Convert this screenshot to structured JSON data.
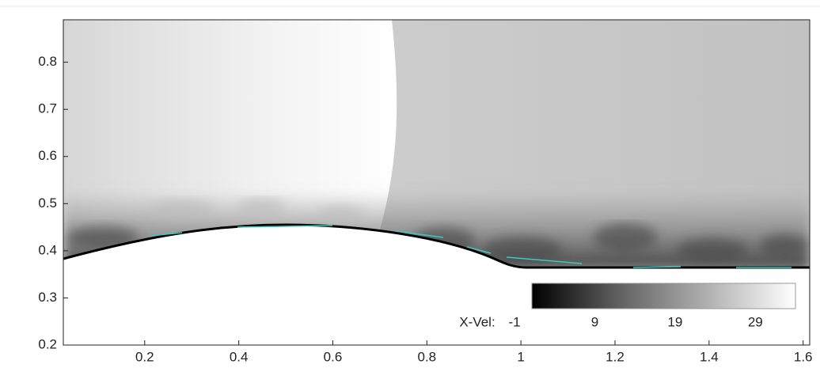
{
  "chart_data": {
    "type": "contour",
    "xlim": [
      0.027,
      1.614
    ],
    "ylim": [
      0.2,
      0.89
    ],
    "xticks": [
      0.2,
      0.4,
      0.6,
      0.8,
      1,
      1.2,
      1.4,
      1.6
    ],
    "yticks": [
      0.2,
      0.3,
      0.4,
      0.5,
      0.6,
      0.7,
      0.8
    ],
    "colorbar": {
      "label": "X-Vel:",
      "ticks": [
        -1,
        9,
        19,
        29
      ],
      "range": [
        -1,
        34
      ]
    }
  }
}
